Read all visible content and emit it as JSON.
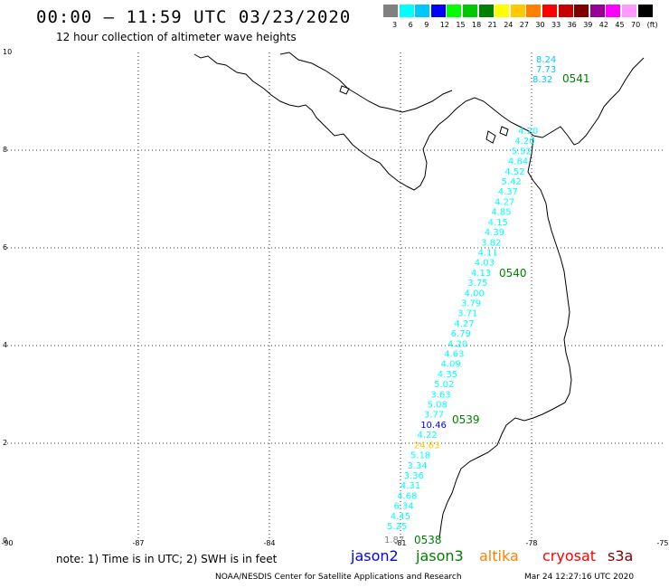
{
  "title": "00:00 – 11:59 UTC 03/23/2020",
  "subtitle": "12 hour collection of altimeter wave heights",
  "colorbar": {
    "colors": [
      "#808080",
      "#00ffff",
      "#00c8ff",
      "#0000ff",
      "#00ff00",
      "#00c800",
      "#008000",
      "#ffff00",
      "#ffc800",
      "#ff8000",
      "#ff0000",
      "#c80000",
      "#800000",
      "#960096",
      "#ff00ff",
      "#ff99ff",
      "#000000"
    ],
    "labels": [
      "3",
      "6",
      "9",
      "12",
      "15",
      "18",
      "21",
      "24",
      "27",
      "30",
      "33",
      "36",
      "39",
      "42",
      "45",
      "70",
      "(ft)"
    ]
  },
  "axes": {
    "x_ticks": [
      "-90",
      "-87",
      "-84",
      "-81",
      "-78",
      "-75"
    ],
    "y_ticks": [
      "0",
      "2",
      "4",
      "6",
      "8",
      "10"
    ],
    "x_range": [
      -90,
      -75
    ],
    "y_range": [
      0,
      10
    ]
  },
  "labels_main": [
    "5.25",
    "4.45",
    "6.34",
    "4.68",
    "4.31",
    "3.36",
    "3.34",
    "5.18",
    "24.63",
    "4.22",
    "10.46",
    "3.77",
    "5.08",
    "3.63",
    "5.02",
    "4.35",
    "4.09",
    "4.63",
    "4.20",
    "6.79",
    "4.27",
    "3.71",
    "3.79",
    "4.00",
    "3.75",
    "4.13",
    "4.03",
    "4.11",
    "3.82",
    "4.39",
    "4.15",
    "4.85",
    "4.27",
    "4.37",
    "5.42",
    "4.52",
    "4.84",
    "5.52",
    "4.20",
    "4.20"
  ],
  "label_colors": [
    "#00ffff",
    "#00ffff",
    "#00ffff",
    "#00ffff",
    "#00ffff",
    "#00ffff",
    "#00ffff",
    "#00ffff",
    "#ffc800",
    "#00ffff",
    "#0000ff",
    "#00ffff",
    "#00ffff",
    "#00ffff",
    "#00ffff",
    "#00ffff",
    "#00ffff",
    "#00ffff",
    "#00ffff",
    "#00ffff",
    "#00ffff",
    "#00ffff",
    "#00ffff",
    "#00ffff",
    "#00ffff",
    "#00ffff",
    "#00ffff",
    "#00ffff",
    "#00ffff",
    "#00ffff",
    "#00ffff",
    "#00ffff",
    "#00ffff",
    "#00ffff",
    "#00ffff",
    "#00ffff",
    "#00ffff",
    "#00ffff",
    "#00ffff",
    "#00ffff"
  ],
  "extra_label": "1.87",
  "top_labels": [
    "8.24",
    "7.73",
    "8.32"
  ],
  "passes": [
    "0538",
    "0539",
    "0540",
    "0541"
  ],
  "note": "note: 1) Time is in UTC; 2) SWH is in feet",
  "satellites": [
    {
      "name": "jason2",
      "color": "#0000ff"
    },
    {
      "name": "jason3",
      "color": "#008000"
    },
    {
      "name": "altika",
      "color": "#ff8000"
    },
    {
      "name": "cryosat",
      "color": "#ff0000"
    },
    {
      "name": "s3a",
      "color": "#800000"
    }
  ],
  "footer_left": "NOAA/NESDIS Center for Satellite Applications and Research",
  "footer_right": "Mar 24 12:27:16 UTC 2020"
}
